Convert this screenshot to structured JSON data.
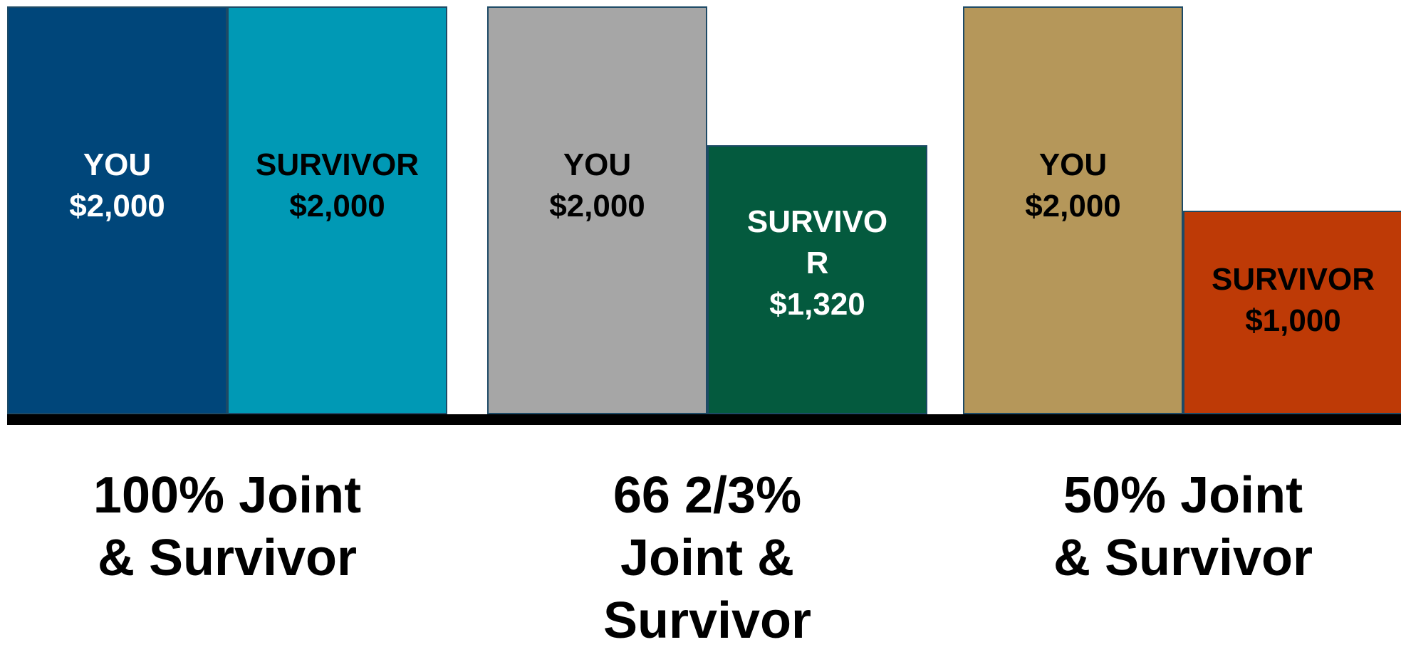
{
  "chart_data": {
    "type": "bar",
    "categories": [
      "100% Joint & Survivor",
      "66 2/3% Joint & Survivor",
      "50% Joint & Survivor"
    ],
    "ylim": [
      0,
      2000
    ],
    "series": [
      {
        "name": "YOU",
        "values": [
          2000,
          2000,
          2000
        ],
        "value_labels": [
          "$2,000",
          "$2,000",
          "$2,000"
        ],
        "colors": [
          "#00467a",
          "#a6a6a6",
          "#b5975a"
        ],
        "label_colors": [
          "#ffffff",
          "#000000",
          "#000000"
        ]
      },
      {
        "name": "SURVIVOR",
        "values": [
          2000,
          1320,
          1000
        ],
        "value_labels": [
          "$2,000",
          "$1,320",
          "$1,000"
        ],
        "colors": [
          "#0099b5",
          "#045a3e",
          "#be3a06"
        ],
        "label_colors": [
          "#000000",
          "#ffffff",
          "#000000"
        ]
      }
    ]
  }
}
